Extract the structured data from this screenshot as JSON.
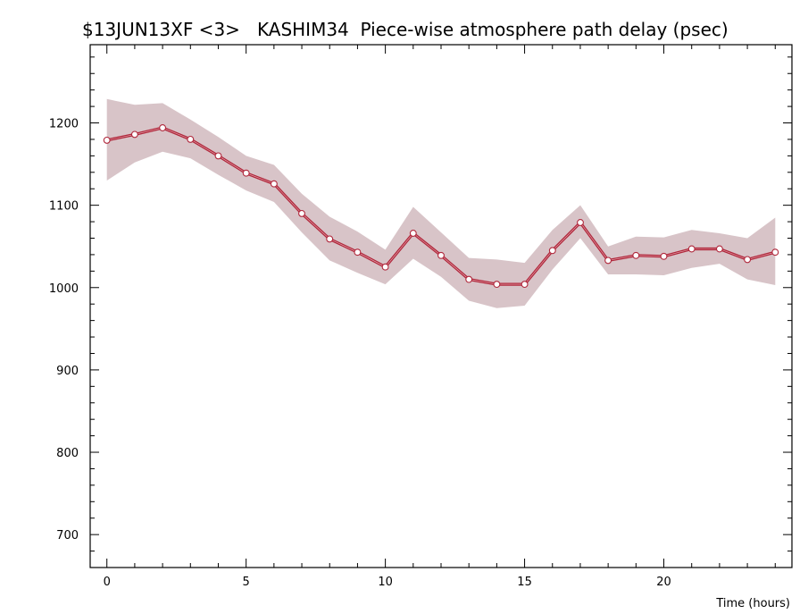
{
  "chart_data": {
    "type": "line",
    "title": "$13JUN13XF <3>   KASHIM34  Piece-wise atmosphere path delay (psec)",
    "xlabel": "Time (hours)",
    "ylabel": "",
    "xlim": [
      -0.6,
      24.6
    ],
    "ylim": [
      660,
      1295
    ],
    "x_ticks": [
      0,
      5,
      10,
      15,
      20
    ],
    "y_ticks": [
      700,
      800,
      900,
      1000,
      1100,
      1200
    ],
    "grid": false,
    "colors": {
      "line": "#b0283c",
      "band": "#d8c4c8",
      "marker_fill": "#ffffff"
    },
    "series": [
      {
        "x": [
          0,
          1,
          2,
          3,
          4,
          5,
          6,
          7,
          8,
          9,
          10,
          11,
          12,
          13,
          14,
          15,
          16,
          17,
          18,
          19,
          20,
          21,
          22,
          23,
          24
        ],
        "values": [
          1179,
          1186,
          1194,
          1180,
          1160,
          1139,
          1126,
          1090,
          1059,
          1043,
          1025,
          1066,
          1039,
          1010,
          1004,
          1004,
          1045,
          1079,
          1033,
          1039,
          1038,
          1047,
          1047,
          1034,
          1043
        ],
        "upper": [
          1229,
          1222,
          1224,
          1204,
          1183,
          1160,
          1149,
          1114,
          1086,
          1068,
          1046,
          1098,
          1067,
          1036,
          1034,
          1030,
          1070,
          1100,
          1050,
          1062,
          1061,
          1070,
          1066,
          1060,
          1085
        ],
        "lower": [
          1130,
          1152,
          1165,
          1157,
          1137,
          1118,
          1104,
          1067,
          1033,
          1018,
          1004,
          1035,
          1013,
          984,
          975,
          978,
          1022,
          1060,
          1016,
          1016,
          1015,
          1024,
          1029,
          1010,
          1003
        ]
      }
    ]
  }
}
